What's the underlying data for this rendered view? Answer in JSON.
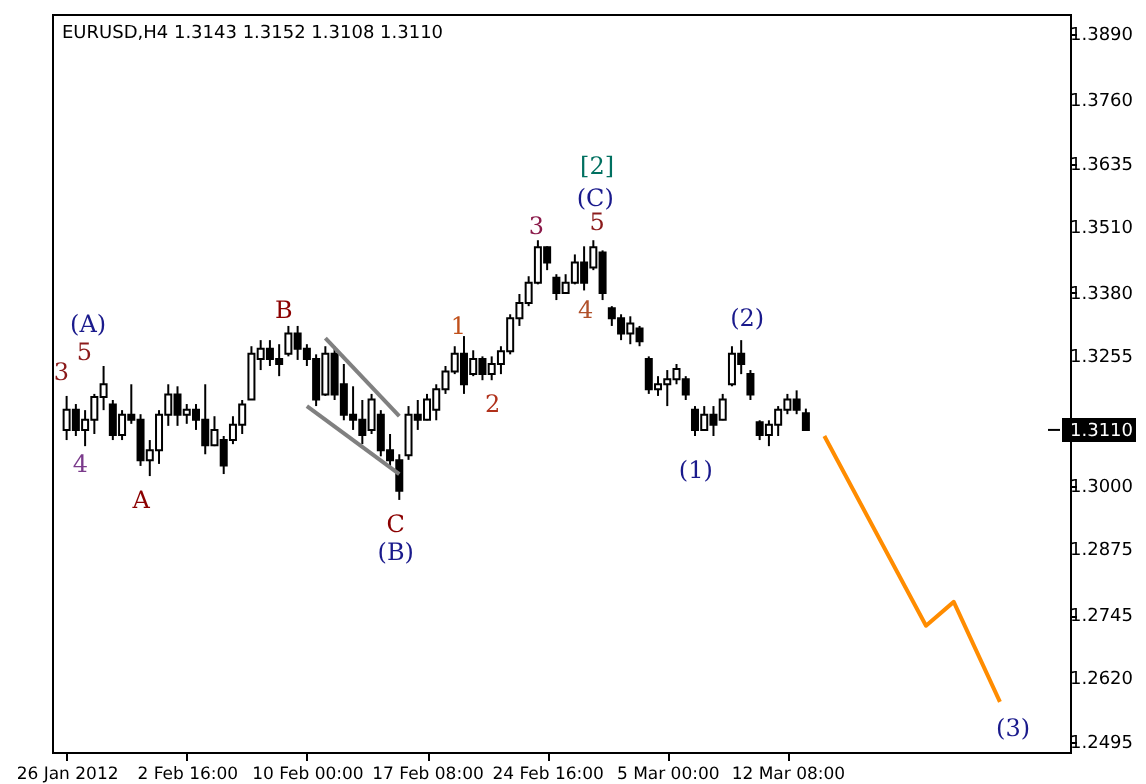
{
  "chart_data": {
    "type": "candlestick",
    "title": "EURUSD,H4  1.3143 1.3152 1.3108 1.3110",
    "categories": [
      "26 Jan 2012",
      null,
      null,
      null,
      null,
      null,
      null,
      null,
      null,
      null,
      null,
      null,
      null,
      "2 Feb 16:00",
      null,
      null,
      null,
      null,
      null,
      null,
      null,
      null,
      null,
      null,
      null,
      null,
      "10 Feb 00:00",
      null,
      null,
      null,
      null,
      null,
      null,
      null,
      null,
      null,
      null,
      null,
      null,
      "17 Feb 08:00",
      null,
      null,
      null,
      null,
      null,
      null,
      null,
      null,
      null,
      null,
      null,
      null,
      "24 Feb 16:00",
      null,
      null,
      null,
      null,
      null,
      null,
      null,
      null,
      null,
      null,
      null,
      null,
      "5 Mar 00:00",
      null,
      null,
      null,
      null,
      null,
      null,
      null,
      null,
      null,
      null,
      null,
      null,
      "12 Mar 08:00",
      null,
      null,
      null,
      null,
      null,
      null,
      null,
      null,
      null,
      null,
      null,
      null,
      null,
      null,
      null,
      null,
      null,
      null,
      null,
      null,
      null,
      null,
      null,
      null,
      null,
      null,
      null,
      null,
      null
    ],
    "ohlc": [
      [
        1.311,
        1.3177,
        1.309,
        1.315
      ],
      [
        1.315,
        1.3161,
        1.3098,
        1.311
      ],
      [
        1.311,
        1.3149,
        1.3078,
        1.313
      ],
      [
        1.313,
        1.3181,
        1.3102,
        1.3175
      ],
      [
        1.3175,
        1.3236,
        1.3149,
        1.32
      ],
      [
        1.316,
        1.3169,
        1.309,
        1.31
      ],
      [
        1.31,
        1.3149,
        1.309,
        1.314
      ],
      [
        1.314,
        1.32,
        1.3122,
        1.313
      ],
      [
        1.313,
        1.3141,
        1.3039,
        1.305
      ],
      [
        1.305,
        1.309,
        1.3019,
        1.307
      ],
      [
        1.307,
        1.3149,
        1.3043,
        1.314
      ],
      [
        1.314,
        1.32,
        1.3118,
        1.318
      ],
      [
        1.318,
        1.3196,
        1.3118,
        1.314
      ],
      [
        1.314,
        1.3161,
        1.3122,
        1.315
      ],
      [
        1.315,
        1.3161,
        1.311,
        1.313
      ],
      [
        1.313,
        1.32,
        1.3062,
        1.308
      ],
      [
        1.308,
        1.3137,
        1.3078,
        1.311
      ],
      [
        1.309,
        1.3098,
        1.3023,
        1.304
      ],
      [
        1.309,
        1.3137,
        1.3082,
        1.312
      ],
      [
        1.312,
        1.3169,
        1.3102,
        1.316
      ],
      [
        1.317,
        1.3275,
        1.3169,
        1.326
      ],
      [
        1.325,
        1.3287,
        1.3228,
        1.327
      ],
      [
        1.327,
        1.3287,
        1.3236,
        1.325
      ],
      [
        1.325,
        1.3279,
        1.3216,
        1.324
      ],
      [
        1.326,
        1.3315,
        1.3255,
        1.33
      ],
      [
        1.33,
        1.3315,
        1.3248,
        1.327
      ],
      [
        1.327,
        1.3279,
        1.3236,
        1.325
      ],
      [
        1.325,
        1.3259,
        1.3157,
        1.317
      ],
      [
        1.318,
        1.3275,
        1.3177,
        1.326
      ],
      [
        1.326,
        1.3275,
        1.3169,
        1.318
      ],
      [
        1.32,
        1.324,
        1.3129,
        1.314
      ],
      [
        1.314,
        1.3196,
        1.311,
        1.313
      ],
      [
        1.313,
        1.3169,
        1.3082,
        1.31
      ],
      [
        1.311,
        1.3181,
        1.3102,
        1.317
      ],
      [
        1.314,
        1.3149,
        1.3058,
        1.307
      ],
      [
        1.307,
        1.3102,
        1.3039,
        1.305
      ],
      [
        1.305,
        1.3062,
        1.2972,
        1.299
      ],
      [
        1.306,
        1.3157,
        1.3051,
        1.314
      ],
      [
        1.314,
        1.3169,
        1.311,
        1.313
      ],
      [
        1.313,
        1.3181,
        1.3129,
        1.317
      ],
      [
        1.315,
        1.32,
        1.3129,
        1.319
      ],
      [
        1.319,
        1.3236,
        1.3181,
        1.3225
      ],
      [
        1.3225,
        1.3275,
        1.322,
        1.326
      ],
      [
        1.326,
        1.3295,
        1.3181,
        1.32
      ],
      [
        1.322,
        1.3267,
        1.3216,
        1.325
      ],
      [
        1.325,
        1.3255,
        1.3208,
        1.322
      ],
      [
        1.322,
        1.3255,
        1.3208,
        1.324
      ],
      [
        1.324,
        1.3275,
        1.322,
        1.3265
      ],
      [
        1.3265,
        1.3338,
        1.3259,
        1.333
      ],
      [
        1.333,
        1.3378,
        1.3315,
        1.336
      ],
      [
        1.336,
        1.3413,
        1.3354,
        1.34
      ],
      [
        1.34,
        1.3484,
        1.3397,
        1.347
      ],
      [
        1.347,
        1.3472,
        1.3425,
        1.344
      ],
      [
        1.341,
        1.3417,
        1.3366,
        1.338
      ],
      [
        1.338,
        1.3417,
        1.3378,
        1.34
      ],
      [
        1.34,
        1.3456,
        1.3397,
        1.344
      ],
      [
        1.344,
        1.3472,
        1.3385,
        1.34
      ],
      [
        1.343,
        1.3484,
        1.3425,
        1.347
      ],
      [
        1.346,
        1.3464,
        1.3366,
        1.338
      ],
      [
        1.335,
        1.3354,
        1.3315,
        1.333
      ],
      [
        1.333,
        1.3338,
        1.3287,
        1.33
      ],
      [
        1.33,
        1.3334,
        1.3279,
        1.332
      ],
      [
        1.331,
        1.3315,
        1.3275,
        1.3285
      ],
      [
        1.325,
        1.3255,
        1.3181,
        1.319
      ],
      [
        1.319,
        1.3216,
        1.3177,
        1.32
      ],
      [
        1.32,
        1.3228,
        1.3157,
        1.321
      ],
      [
        1.321,
        1.324,
        1.32,
        1.323
      ],
      [
        1.321,
        1.3216,
        1.3169,
        1.318
      ],
      [
        1.315,
        1.3157,
        1.3098,
        1.311
      ],
      [
        1.311,
        1.3157,
        1.311,
        1.314
      ],
      [
        1.314,
        1.3157,
        1.3098,
        1.312
      ],
      [
        1.313,
        1.3181,
        1.3129,
        1.317
      ],
      [
        1.32,
        1.3275,
        1.3196,
        1.326
      ],
      [
        1.326,
        1.3287,
        1.322,
        1.324
      ],
      [
        1.322,
        1.3228,
        1.3169,
        1.318
      ],
      [
        1.3125,
        1.3129,
        1.309,
        1.31
      ],
      [
        1.31,
        1.3129,
        1.3078,
        1.312
      ],
      [
        1.312,
        1.3157,
        1.3098,
        1.315
      ],
      [
        1.315,
        1.3181,
        1.3141,
        1.317
      ],
      [
        1.317,
        1.3188,
        1.3141,
        1.315
      ],
      [
        1.3143,
        1.3152,
        1.3108,
        1.311
      ],
      null,
      null,
      null,
      null,
      null,
      null,
      null,
      null,
      null,
      null,
      null,
      null,
      null,
      null,
      null,
      null,
      null,
      null,
      null,
      null,
      null,
      null,
      null,
      null,
      null,
      null,
      null
    ],
    "series": [
      {
        "type": "line",
        "color": "#ff8c00",
        "values": [
          null,
          null,
          null,
          null,
          null,
          null,
          null,
          null,
          null,
          null,
          null,
          null,
          null,
          null,
          null,
          null,
          null,
          null,
          null,
          null,
          null,
          null,
          null,
          null,
          null,
          null,
          null,
          null,
          null,
          null,
          null,
          null,
          null,
          null,
          null,
          null,
          null,
          null,
          null,
          null,
          null,
          null,
          null,
          null,
          null,
          null,
          null,
          null,
          null,
          null,
          null,
          null,
          null,
          null,
          null,
          null,
          null,
          null,
          null,
          null,
          null,
          null,
          null,
          null,
          null,
          null,
          null,
          null,
          null,
          null,
          null,
          null,
          null,
          null,
          null,
          null,
          null,
          null,
          null,
          null,
          null,
          null,
          1.3098,
          null,
          null,
          null,
          null,
          null,
          null,
          null,
          null,
          null,
          null,
          1.2724,
          null,
          null,
          1.2771,
          null,
          null,
          null,
          null,
          1.2574,
          null,
          null,
          null,
          null,
          null,
          null
        ]
      },
      {
        "type": "line",
        "color": "#808080",
        "values": [
          null,
          null,
          null,
          null,
          null,
          null,
          null,
          null,
          null,
          null,
          null,
          null,
          null,
          null,
          null,
          null,
          null,
          null,
          null,
          null,
          null,
          null,
          null,
          null,
          null,
          null,
          null,
          null,
          1.3291,
          null,
          null,
          null,
          null,
          null,
          null,
          null,
          1.3137,
          null,
          null,
          null,
          null,
          null,
          null,
          null,
          null,
          null,
          null,
          null,
          null,
          null,
          null,
          null,
          null,
          null,
          null,
          null,
          null,
          null,
          null,
          null,
          null,
          null,
          null,
          null,
          null,
          null,
          null,
          null,
          null,
          null,
          null,
          null,
          null,
          null,
          null,
          null,
          null,
          null,
          null,
          null,
          null,
          null,
          null,
          null,
          null,
          null,
          null,
          null,
          null,
          null,
          null,
          null,
          null,
          null,
          null,
          null,
          null,
          null,
          null,
          null,
          null,
          null,
          null,
          null,
          null,
          null,
          null,
          null
        ]
      },
      {
        "type": "line",
        "color": "#808080",
        "values": [
          null,
          null,
          null,
          null,
          null,
          null,
          null,
          null,
          null,
          null,
          null,
          null,
          null,
          null,
          null,
          null,
          null,
          null,
          null,
          null,
          null,
          null,
          null,
          null,
          null,
          null,
          1.3157,
          null,
          null,
          null,
          null,
          null,
          null,
          null,
          null,
          null,
          1.3023,
          null,
          null,
          null,
          null,
          null,
          null,
          null,
          null,
          null,
          null,
          null,
          null,
          null,
          null,
          null,
          null,
          null,
          null,
          null,
          null,
          null,
          null,
          null,
          null,
          null,
          null,
          null,
          null,
          null,
          null,
          null,
          null,
          null,
          null,
          null,
          null,
          null,
          null,
          null,
          null,
          null,
          null,
          null,
          null,
          null,
          null,
          null,
          null,
          null,
          null,
          null,
          null,
          null,
          null,
          null,
          null,
          null,
          null,
          null,
          null,
          null,
          null,
          null,
          null,
          null,
          null,
          null,
          null,
          null,
          null,
          null
        ]
      }
    ],
    "ylim": [
      1.2475,
      1.393
    ],
    "yticks": [
      {
        "value": 1.2495,
        "label": "1.2495"
      },
      {
        "value": 1.262,
        "label": "1.2620"
      },
      {
        "value": 1.2745,
        "label": "1.2745"
      },
      {
        "value": 1.2875,
        "label": "1.2875"
      },
      {
        "value": 1.3,
        "label": "1.3000"
      },
      {
        "value": 1.3255,
        "label": "1.3255"
      },
      {
        "value": 1.338,
        "label": "1.3380"
      },
      {
        "value": 1.351,
        "label": "1.3510"
      },
      {
        "value": 1.3635,
        "label": "1.3635"
      },
      {
        "value": 1.376,
        "label": "1.3760"
      },
      {
        "value": 1.389,
        "label": "1.3890"
      }
    ],
    "ref_lines": [
      {
        "axis": "y",
        "value": 1.311,
        "label": "1.3110",
        "color": "#000000"
      }
    ],
    "annotations": [
      "(A)",
      "5",
      "3",
      "4",
      "A",
      "B",
      "C",
      "(B)",
      "1",
      "2",
      "3",
      "[2]",
      "(C)",
      "5",
      "4",
      "(1)",
      "(2)",
      "(3)"
    ]
  }
}
